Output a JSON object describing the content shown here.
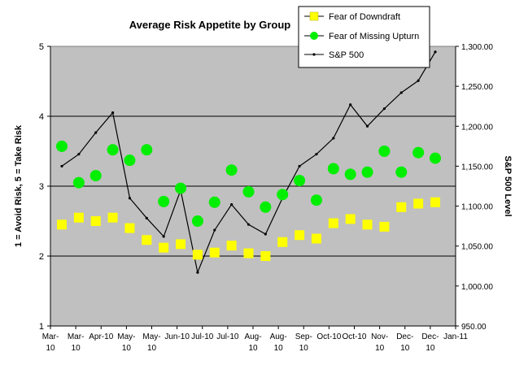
{
  "chart_data": {
    "type": "line",
    "title": "Average Risk Appetite by Group",
    "ylabel": "1 = Avoid Risk, 5 = Take Risk",
    "y2label": "S&P 500 Level",
    "ylim": [
      1,
      5
    ],
    "y2lim": [
      950,
      1300
    ],
    "yticks": [
      "1",
      "2",
      "3",
      "4",
      "5"
    ],
    "y2ticks": [
      "950.00",
      "1,000.00",
      "1,050.00",
      "1,100.00",
      "1,150.00",
      "1,200.00",
      "1,250.00",
      "1,300.00"
    ],
    "grid": "horizontal major lines at 2, 3, 4",
    "legend_position": "top-right",
    "x_labels": [
      {
        "line1": "Mar-",
        "line2": "10"
      },
      {
        "line1": "Mar-",
        "line2": "10"
      },
      {
        "line1": "Apr-10",
        "line2": ""
      },
      {
        "line1": "May-",
        "line2": "10"
      },
      {
        "line1": "May-",
        "line2": "10"
      },
      {
        "line1": "Jun-10",
        "line2": ""
      },
      {
        "line1": "Jul-10",
        "line2": ""
      },
      {
        "line1": "Jul-10",
        "line2": ""
      },
      {
        "line1": "Aug-",
        "line2": "10"
      },
      {
        "line1": "Aug-",
        "line2": "10"
      },
      {
        "line1": "Sep-",
        "line2": "10"
      },
      {
        "line1": "Oct-10",
        "line2": ""
      },
      {
        "line1": "Oct-10",
        "line2": ""
      },
      {
        "line1": "Nov-",
        "line2": "10"
      },
      {
        "line1": "Dec-",
        "line2": "10"
      },
      {
        "line1": "Dec-",
        "line2": "10"
      },
      {
        "line1": "Jan-11",
        "line2": ""
      }
    ],
    "series": [
      {
        "name": "Fear of Downdraft",
        "axis": "left",
        "marker": "square",
        "color": "#ffff00",
        "values": [
          2.45,
          2.55,
          2.5,
          2.55,
          2.4,
          2.23,
          2.12,
          2.17,
          2.02,
          2.05,
          2.15,
          2.04,
          2.0,
          2.2,
          2.3,
          2.25,
          2.47,
          2.53,
          2.45,
          2.42,
          2.7,
          2.75,
          2.77
        ]
      },
      {
        "name": "Fear of Missing Upturn",
        "axis": "left",
        "marker": "circle",
        "color": "#00ee00",
        "values": [
          3.57,
          3.05,
          3.15,
          3.52,
          3.37,
          3.52,
          2.78,
          2.97,
          2.5,
          2.77,
          3.23,
          2.92,
          2.7,
          2.88,
          3.08,
          2.8,
          3.25,
          3.17,
          3.2,
          3.5,
          3.2,
          3.48,
          3.4
        ]
      },
      {
        "name": "S&P 500",
        "axis": "right",
        "marker": "dot",
        "color": "#000000",
        "values": [
          1150,
          1165,
          1192,
          1217,
          1110,
          1085,
          1062,
          1120,
          1017,
          1070,
          1102,
          1077,
          1065,
          1110,
          1150,
          1165,
          1185,
          1227,
          1200,
          1222,
          1242,
          1257,
          1293
        ]
      }
    ]
  }
}
